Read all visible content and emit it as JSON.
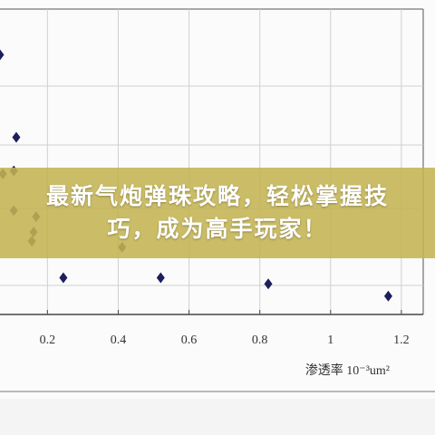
{
  "chart_data": {
    "type": "scatter",
    "title": "最新气炮弹珠攻略，轻松掌握技巧，成为高手玩家！",
    "xlabel": "渗透率  10⁻³um²",
    "x": [
      0.066,
      0.112,
      0.105,
      0.074,
      0.105,
      0.168,
      0.161,
      0.156,
      0.245,
      0.411,
      0.52,
      0.824,
      1.163
    ],
    "values": [
      8.5,
      5.8,
      4.7,
      4.6,
      3.4,
      3.2,
      2.7,
      2.4,
      1.2,
      2.2,
      1.2,
      1.0,
      0.6
    ],
    "color": "#1c1f5a",
    "xlim": [
      0.066,
      1.295
    ],
    "ylim": [
      0,
      10
    ],
    "xticks": [
      0.2,
      0.4,
      0.6,
      0.8,
      1.0,
      1.2
    ],
    "grid": true
  }
}
